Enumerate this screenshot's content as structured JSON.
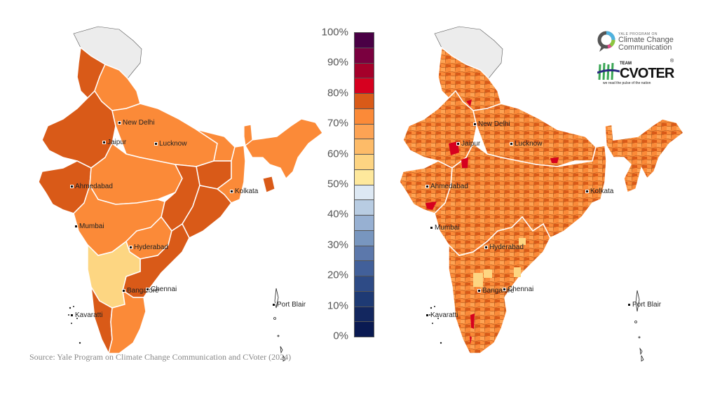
{
  "source": "Source: Yale Program on Climate Change Communication and CVoter (2024)",
  "logos": {
    "yale": {
      "small": "YALE PROGRAM ON",
      "line1": "Climate Change",
      "line2": "Communication"
    },
    "cvoter": {
      "team": "TEAM",
      "name": "CVOTER",
      "registered": "®",
      "tagline": "we read the pulse of the nation"
    }
  },
  "maps": {
    "left": {
      "level": "state",
      "cities": [
        "New Delhi",
        "Jaipur",
        "Lucknow",
        "Ahmedabad",
        "Kolkata",
        "Mumbai",
        "Hyderabad",
        "Bangalore",
        "Chennai",
        "Kavaratti",
        "Port Blair"
      ]
    },
    "right": {
      "level": "district",
      "cities": [
        "New Delhi",
        "Jaipur",
        "Lucknow",
        "Ahmedabad",
        "Kolkata",
        "Mumbai",
        "Hyderabad",
        "Bangalore",
        "Chennai",
        "Kavaratti",
        "Port Blair"
      ]
    }
  },
  "legend": {
    "labels": [
      "100%",
      "90%",
      "80%",
      "70%",
      "60%",
      "50%",
      "40%",
      "30%",
      "20%",
      "10%",
      "0%"
    ],
    "bins": [
      {
        "range": "95-100%",
        "color": "#4a0045"
      },
      {
        "range": "90-95%",
        "color": "#7a003f"
      },
      {
        "range": "85-90%",
        "color": "#a5002a"
      },
      {
        "range": "80-85%",
        "color": "#d6001f"
      },
      {
        "range": "75-80%",
        "color": "#d95a18"
      },
      {
        "range": "70-75%",
        "color": "#fb8a38"
      },
      {
        "range": "65-70%",
        "color": "#fda354"
      },
      {
        "range": "60-65%",
        "color": "#fdbb68"
      },
      {
        "range": "55-60%",
        "color": "#fdd482"
      },
      {
        "range": "50-55%",
        "color": "#fee89c"
      },
      {
        "range": "45-50%",
        "color": "#dde8f3"
      },
      {
        "range": "40-45%",
        "color": "#b8cce2"
      },
      {
        "range": "35-40%",
        "color": "#97b0d2"
      },
      {
        "range": "30-35%",
        "color": "#7896bf"
      },
      {
        "range": "25-30%",
        "color": "#5c78ab"
      },
      {
        "range": "20-25%",
        "color": "#42609a"
      },
      {
        "range": "15-20%",
        "color": "#2e4b86"
      },
      {
        "range": "10-15%",
        "color": "#1e3a74"
      },
      {
        "range": "5-10%",
        "color": "#13275f"
      },
      {
        "range": "0-5%",
        "color": "#0a1a52"
      }
    ]
  },
  "colors": {
    "no_data": "#ececec",
    "dark_orange": "#d95a18",
    "orange": "#fb8a38",
    "light_yellow": "#fdd682",
    "red": "#d6001f",
    "border": "#ffffff"
  },
  "chart_data": {
    "type": "heatmap",
    "title": "",
    "legend": {
      "min": 0,
      "max": 100,
      "step": 5,
      "unit": "%"
    },
    "state_level": {
      "Jammu & Kashmir / Ladakh": "no data",
      "Himachal Pradesh": "75-80%",
      "Punjab": "75-80%",
      "Uttarakhand": "70-75%",
      "Haryana": "70-75%",
      "Rajasthan": "75-80%",
      "Gujarat": "75-80%",
      "Uttar Pradesh": "70-75%",
      "Madhya Pradesh": "70-75%",
      "Bihar": "70-75%",
      "Jharkhand": "75-80%",
      "West Bengal": "70-75%",
      "Chhattisgarh": "75-80%",
      "Odisha": "75-80%",
      "Maharashtra": "70-75%",
      "Telangana": "70-75%",
      "Andhra Pradesh": "75-80%",
      "Karnataka": "55-60%",
      "Kerala": "75-80%",
      "Tamil Nadu": "70-75%",
      "Northeast states": "70-75%",
      "Tripura": "75-80%"
    }
  }
}
